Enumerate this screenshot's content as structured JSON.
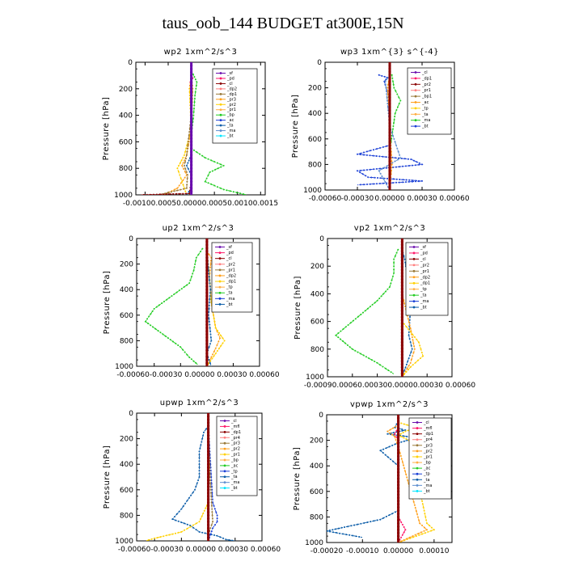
{
  "figure": {
    "title": "taus_oob_144  BUDGET at300E,15N"
  },
  "colors": {
    "_wpxp_bt": "#00e5ff",
    "frame": "#000000",
    "thick_center": "#8b0000",
    "thick_center_alt": "#6a0dad",
    "tp": "#1a3fd6",
    "ta": "#0a5ca8",
    "pr1": "#ff9f1a",
    "pr2": "#ffd000",
    "ac": "#22cc22",
    "dp1": "#9a7a3a",
    "ma": "#6090d0"
  },
  "chart_data": [
    {
      "type": "line",
      "title": "wp2   1xm^2/s^3",
      "ylabel": "Pressure  [hPa]",
      "xlim": [
        -0.0012,
        0.0016
      ],
      "ylim": [
        1000,
        0
      ],
      "xticks": [
        -0.001,
        -0.0005,
        0.0,
        0.0005,
        0.001,
        0.0015
      ],
      "xtick_labels": [
        "-0.00100.00050.00000.00050.00100.0015"
      ],
      "xtick_label_mode": "joined",
      "yticks": [
        0,
        200,
        400,
        600,
        800,
        1000
      ],
      "ytick_labels": [
        "0",
        "200",
        "400",
        "600",
        "800",
        "1000"
      ],
      "legend": [
        "_sf",
        "_pd",
        "_cl",
        "_dp2",
        "_dp1",
        "_pr3",
        "_pr2",
        "_pr1",
        "_bp",
        "_ac",
        "_ta",
        "_ma",
        "_bt"
      ],
      "series": [
        {
          "name": "_ac",
          "color": "#22cc22",
          "x": [
            4e-05,
            0.00012,
            8e-05,
            5e-05,
            0.0,
            0.0,
            0.0003,
            0.0007,
            0.0004,
            0.0003,
            0.0007,
            0.0012
          ],
          "y": [
            90,
            150,
            250,
            400,
            550,
            650,
            720,
            780,
            830,
            900,
            960,
            1000
          ]
        },
        {
          "name": "_pr1",
          "color": "#ff9f1a",
          "x": [
            0.0,
            3e-05,
            0.0,
            -0.0001,
            -0.0002,
            -0.0001,
            -0.0003,
            -0.0006
          ],
          "y": [
            100,
            200,
            500,
            700,
            780,
            850,
            950,
            1000
          ]
        },
        {
          "name": "_pr2",
          "color": "#ffd000",
          "x": [
            0.0,
            -4e-05,
            0.0,
            -0.00015,
            -0.0003,
            -0.0002,
            -0.0001
          ],
          "y": [
            100,
            200,
            500,
            700,
            800,
            900,
            1000
          ]
        },
        {
          "name": "_dp1",
          "color": "#9a7a3a",
          "x": [
            0.0,
            0.0,
            -0.0001,
            -0.00015,
            -8e-05,
            -0.0001,
            -0.0007
          ],
          "y": [
            100,
            400,
            700,
            780,
            850,
            950,
            1000
          ]
        },
        {
          "name": "_ta",
          "color": "#0a5ca8",
          "x": [
            0.0,
            0.0,
            0.0,
            -0.0001,
            0.0,
            0.0,
            -0.0001
          ],
          "y": [
            100,
            400,
            700,
            780,
            850,
            950,
            1000
          ]
        },
        {
          "name": "_sf",
          "color": "#8b0000",
          "x": [
            0.0,
            0.0,
            0.0,
            0.0,
            0.0,
            -4e-05,
            -0.0011
          ],
          "y": [
            100,
            400,
            700,
            800,
            900,
            990,
            1000
          ]
        },
        {
          "name": "_pd",
          "color": "#ff1a6a",
          "x": [
            0.0,
            3e-05,
            -2e-05,
            0.0,
            0.0,
            0.0,
            0.0
          ],
          "y": [
            90,
            120,
            150,
            400,
            800,
            900,
            1000
          ]
        },
        {
          "name": "_bt",
          "color": "#6a0dad",
          "x": [
            0.0,
            0.0,
            0.0,
            0.0,
            0.0,
            0.0
          ],
          "y": [
            0,
            200,
            400,
            600,
            800,
            1000
          ]
        }
      ]
    },
    {
      "type": "line",
      "title": "wp3   1xm^{3} s^{-4}",
      "ylabel": "Pressure  [hPa]",
      "xlim": [
        -0.0006,
        0.0006
      ],
      "ylim": [
        1000,
        0
      ],
      "xticks": [
        -0.0006,
        -0.0003,
        0.0,
        0.0003,
        0.0006
      ],
      "xtick_labels": [
        "-0.00060",
        "-0.00030",
        "0.00000",
        "0.00030",
        "0.00060"
      ],
      "yticks": [
        0,
        200,
        400,
        600,
        800,
        1000
      ],
      "ytick_labels": [
        "0",
        "200",
        "400",
        "600",
        "800",
        "1000"
      ],
      "legend": [
        "_cl",
        "_dp1",
        "_pr2",
        "_pr1",
        "_bp1",
        "_ac",
        "_tp",
        "_ta",
        "_ma",
        "_bt"
      ],
      "series": [
        {
          "name": "_tp",
          "color": "#1a3fd6",
          "x": [
            -0.0001,
            -2e-05,
            -5e-05,
            0.0,
            0.0,
            0.0,
            -0.0003,
            0.0002,
            0.0003,
            -0.0003,
            -0.0002,
            0.0003,
            -0.0003
          ],
          "y": [
            100,
            120,
            150,
            300,
            500,
            650,
            720,
            760,
            800,
            850,
            900,
            930,
            960
          ]
        },
        {
          "name": "_ac",
          "color": "#22cc22",
          "x": [
            2e-05,
            4e-05,
            0.0001,
            5e-05,
            0.0,
            0.0
          ],
          "y": [
            100,
            200,
            300,
            400,
            700,
            1000
          ]
        },
        {
          "name": "_pr1",
          "color": "#ff9f1a",
          "x": [
            0.0,
            -2e-05,
            0.0,
            2e-05,
            0.0
          ],
          "y": [
            100,
            200,
            500,
            800,
            1000
          ]
        },
        {
          "name": "_ma",
          "color": "#6090d0",
          "x": [
            0.0,
            -4e-05,
            0.0,
            0.0001,
            -0.0001,
            0.0
          ],
          "y": [
            100,
            150,
            500,
            750,
            850,
            1000
          ]
        },
        {
          "name": "_cl",
          "color": "#8b0000",
          "x": [
            0.0,
            0.0,
            0.0,
            0.0,
            0.0
          ],
          "y": [
            0,
            250,
            500,
            750,
            1000
          ]
        }
      ]
    },
    {
      "type": "line",
      "title": "up2   1xm^2/s^3",
      "ylabel": "Pressure  [hPa]",
      "xlim": [
        -0.0008,
        0.0006
      ],
      "ylim": [
        1000,
        0
      ],
      "xticks": [
        -0.0006,
        -0.0003,
        0.0,
        0.0003,
        0.0006
      ],
      "xtick_labels": [
        "-0.00060-0.00030 0.00000 0.00030 0.00060"
      ],
      "xtick_label_mode": "joined",
      "yticks": [
        0,
        200,
        400,
        600,
        800,
        1000
      ],
      "ytick_labels": [
        "0",
        "200",
        "400",
        "600",
        "800",
        "1000"
      ],
      "legend": [
        "_sf",
        "_pd",
        "_cl",
        "_pr2",
        "_pr1",
        "_dp2",
        "_dp1",
        "_tp",
        "_ta",
        "_ma",
        "_bt"
      ],
      "series": [
        {
          "name": "_dp1",
          "color": "#22cc22",
          "x": [
            -5e-05,
            -0.00012,
            -0.00015,
            -0.0002,
            -0.0004,
            -0.0006,
            -0.0007,
            -0.0005,
            -0.0003,
            -0.0002,
            -0.0001
          ],
          "y": [
            80,
            150,
            250,
            350,
            450,
            550,
            650,
            750,
            850,
            930,
            990
          ]
        },
        {
          "name": "_pr1",
          "color": "#ff9f1a",
          "x": [
            0.0,
            5e-05,
            3e-05,
            5e-05,
            0.0001,
            0.00015,
            0.0001,
            0.0
          ],
          "y": [
            100,
            150,
            300,
            500,
            700,
            780,
            860,
            1000
          ]
        },
        {
          "name": "_pr2",
          "color": "#ffd000",
          "x": [
            0.0,
            3e-05,
            5e-05,
            0.0001,
            0.0002,
            0.0001,
            0.0
          ],
          "y": [
            100,
            300,
            500,
            700,
            800,
            900,
            1000
          ]
        },
        {
          "name": "_ta",
          "color": "#0a5ca8",
          "x": [
            0.0,
            4e-05,
            2e-05,
            5e-05,
            0.0,
            5e-05
          ],
          "y": [
            100,
            400,
            600,
            800,
            900,
            1000
          ]
        },
        {
          "name": "_sf",
          "color": "#8b0000",
          "x": [
            0.0,
            0.0,
            0.0,
            0.0,
            0.0
          ],
          "y": [
            0,
            250,
            500,
            750,
            1000
          ]
        }
      ]
    },
    {
      "type": "line",
      "title": "vp2   1xm^2/s^3",
      "ylabel": "Pressure  [hPa]",
      "xlim": [
        -0.0009,
        0.0006
      ],
      "ylim": [
        1000,
        0
      ],
      "xticks": [
        -0.0009,
        -0.0006,
        -0.0003,
        0.0,
        0.0003,
        0.0006
      ],
      "xtick_labels": [
        "-0.00090.00060.000300.00000.00030 0.00060"
      ],
      "xtick_label_mode": "joined",
      "yticks": [
        0,
        200,
        400,
        600,
        800,
        1000
      ],
      "ytick_labels": [
        "0",
        "200",
        "400",
        "600",
        "800",
        "1000"
      ],
      "legend": [
        "_sf",
        "_pd",
        "_cl",
        "_pr2",
        "_pr1",
        "_dp2",
        "_dp1",
        "_tp",
        "_ta",
        "_ma",
        "_bt"
      ],
      "series": [
        {
          "name": "_dp1",
          "color": "#22cc22",
          "x": [
            -5e-05,
            -0.0001,
            -0.0001,
            -0.00015,
            -0.0003,
            -0.0005,
            -0.0008,
            -0.0006,
            -0.0003,
            -0.0001
          ],
          "y": [
            80,
            150,
            250,
            350,
            450,
            550,
            700,
            800,
            900,
            980
          ]
        },
        {
          "name": "_ta",
          "color": "#0a5ca8",
          "x": [
            0.0,
            3e-05,
            7e-05,
            0.0001,
            8e-05,
            0.00012,
            0.0
          ],
          "y": [
            80,
            150,
            300,
            500,
            700,
            800,
            1000
          ]
        },
        {
          "name": "_pr1",
          "color": "#ff9f1a",
          "x": [
            0.0,
            0.0001,
            0.00015,
            0.0001,
            0.0
          ],
          "y": [
            400,
            650,
            800,
            900,
            1000
          ]
        },
        {
          "name": "_pr2",
          "color": "#ffd000",
          "x": [
            0.0,
            0.0002,
            0.00025,
            0.0001,
            0.0
          ],
          "y": [
            600,
            750,
            850,
            930,
            1000
          ]
        },
        {
          "name": "_sf",
          "color": "#8b0000",
          "x": [
            0.0,
            0.0,
            0.0,
            0.0,
            0.0
          ],
          "y": [
            0,
            250,
            500,
            750,
            1000
          ]
        }
      ]
    },
    {
      "type": "line",
      "title": "upwp   1xm^2/s^3",
      "ylabel": "Pressure  [hPa]",
      "xlim": [
        -0.0008,
        0.0006
      ],
      "ylim": [
        1000,
        0
      ],
      "xticks": [
        -0.0006,
        -0.0003,
        0.0,
        0.0003,
        0.0006
      ],
      "xtick_labels": [
        "-0.00060-0.00030 0.00000 0.00030 0.00060"
      ],
      "xtick_label_mode": "joined",
      "yticks": [
        0,
        200,
        400,
        600,
        800,
        1000
      ],
      "ytick_labels": [
        "0",
        "200",
        "400",
        "600",
        "800",
        "1000"
      ],
      "legend": [
        "_cl",
        "_mfl",
        "_dp1",
        "_pr4",
        "_pr3",
        "_pr2",
        "_pr1",
        "_bp",
        "_ac",
        "_tp",
        "_ta",
        "_ma",
        "_bt"
      ],
      "series": [
        {
          "name": "_ta",
          "color": "#0a5ca8",
          "x": [
            0.0,
            -5e-05,
            -0.0001,
            -0.0001,
            -0.00015,
            -0.0003,
            -0.0004,
            -0.0002,
            -0.0001,
            0.0001,
            0.0002,
            0.0003
          ],
          "y": [
            100,
            150,
            300,
            500,
            600,
            750,
            830,
            880,
            930,
            960,
            990,
            1000
          ]
        },
        {
          "name": "_pr1",
          "color": "#ffd000",
          "x": [
            0.0,
            0.0,
            -0.0001,
            -0.0003,
            -0.0006,
            -0.0007
          ],
          "y": [
            100,
            700,
            850,
            930,
            980,
            1000
          ]
        },
        {
          "name": "_tp",
          "color": "#1a3fd6",
          "x": [
            0.0,
            5e-05,
            0.0001,
            0.0001,
            5e-05,
            0.0
          ],
          "y": [
            100,
            700,
            800,
            850,
            900,
            1000
          ]
        },
        {
          "name": "_dp1",
          "color": "#9a7a3a",
          "x": [
            0.0,
            2e-05,
            5e-05,
            0.0,
            0.0
          ],
          "y": [
            100,
            500,
            850,
            950,
            1000
          ]
        },
        {
          "name": "_cl",
          "color": "#8b0000",
          "x": [
            0.0,
            0.0,
            0.0,
            0.0,
            0.0
          ],
          "y": [
            0,
            250,
            500,
            750,
            1000
          ]
        }
      ]
    },
    {
      "type": "line",
      "title": "vpwp   1xm^2/s^3",
      "ylabel": "Pressure  [hPa]",
      "xlim": [
        -0.0002,
        0.00015
      ],
      "ylim": [
        1000,
        0
      ],
      "xticks": [
        -0.0002,
        -0.0001,
        0.0,
        0.0001
      ],
      "xtick_labels": [
        "-0.00020",
        "-0.00010",
        "0.00000",
        "0.00010"
      ],
      "yticks": [
        0,
        200,
        400,
        600,
        800,
        1000
      ],
      "ytick_labels": [
        "0",
        "200",
        "400",
        "600",
        "800",
        "1000"
      ],
      "legend": [
        "_cl",
        "_mfl",
        "_dp1",
        "_pr4",
        "_pr3",
        "_pr2",
        "_pr1",
        "_bp",
        "_ac",
        "_tp",
        "_ta",
        "_ma",
        "_bt"
      ],
      "series": [
        {
          "name": "_ta",
          "color": "#0a5ca8",
          "x": [
            0.0,
            -1e-05,
            2e-05,
            -3e-05,
            5e-05,
            0.0,
            -5e-05,
            0.0,
            0.0,
            -5e-05,
            -0.00015,
            -0.0002,
            -0.0001
          ],
          "y": [
            50,
            100,
            120,
            150,
            180,
            220,
            280,
            400,
            750,
            820,
            880,
            910,
            960
          ]
        },
        {
          "name": "_pr1",
          "color": "#ffd000",
          "x": [
            0.0,
            5e-05,
            2e-05,
            0.0,
            3e-05,
            8e-05,
            0.0001,
            5e-05,
            0.0
          ],
          "y": [
            60,
            100,
            130,
            160,
            200,
            850,
            900,
            950,
            1000
          ]
        },
        {
          "name": "_pr2",
          "color": "#ff9f1a",
          "x": [
            0.0,
            -3e-05,
            -1e-05,
            0.0,
            6e-05,
            8e-05,
            0.0
          ],
          "y": [
            80,
            130,
            170,
            250,
            850,
            900,
            1000
          ]
        },
        {
          "name": "_dp1",
          "color": "#ff1a6a",
          "x": [
            0.0,
            -1e-05,
            0.0,
            0.0,
            2e-05,
            0.0
          ],
          "y": [
            100,
            150,
            200,
            800,
            900,
            1000
          ]
        },
        {
          "name": "_cl",
          "color": "#8b0000",
          "x": [
            0.0,
            0.0,
            0.0,
            0.0,
            0.0
          ],
          "y": [
            0,
            250,
            500,
            750,
            1000
          ]
        }
      ]
    }
  ]
}
